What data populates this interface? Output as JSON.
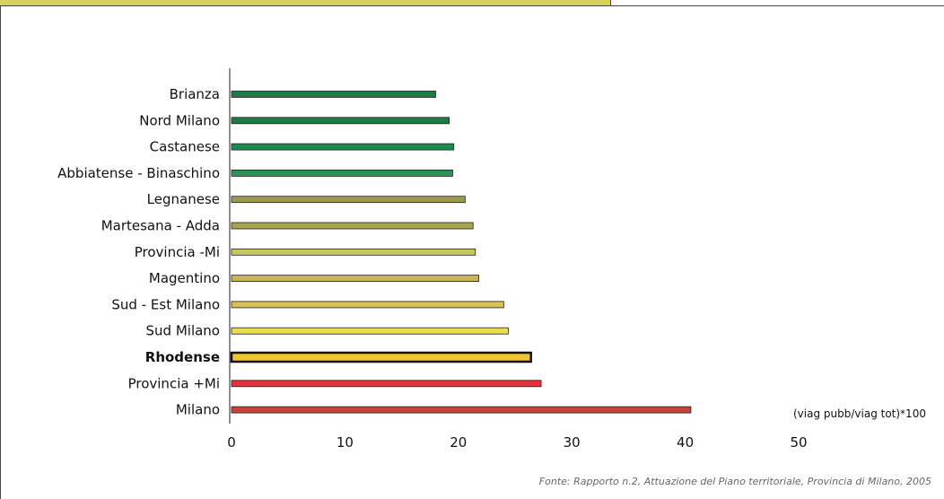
{
  "chart_data": {
    "type": "bar",
    "orientation": "horizontal",
    "categories": [
      "Brianza",
      "Nord Milano",
      "Castanese",
      "Abbiatense - Binaschino",
      "Legnanese",
      "Martesana - Adda",
      "Provincia -Mi",
      "Magentino",
      "Sud - Est Milano",
      "Sud Milano",
      "Rhodense",
      "Provincia +Mi",
      "Milano"
    ],
    "values": [
      18.0,
      19.2,
      19.6,
      19.5,
      20.6,
      21.3,
      21.5,
      21.8,
      24.0,
      24.4,
      26.4,
      27.3,
      40.5
    ],
    "bar_colors": [
      "#1f7a45",
      "#1f7a45",
      "#1f8a4e",
      "#2a9457",
      "#9a9a4a",
      "#a6a54e",
      "#c7c55e",
      "#c9b558",
      "#d6c25a",
      "#e9dd4a",
      "#f0c430",
      "#e8303a",
      "#c8423a"
    ],
    "highlight": "Rhodense",
    "xlim": [
      0,
      50
    ],
    "xticks": [
      "0",
      "10",
      "20",
      "30",
      "40",
      "50"
    ],
    "unit_label": "(viag pubb/viag tot)*100",
    "grid": false
  },
  "source_note": "Fonte:  Rapporto n.2, Attuazione del Piano territoriale, Provincia di Milano, 2005"
}
